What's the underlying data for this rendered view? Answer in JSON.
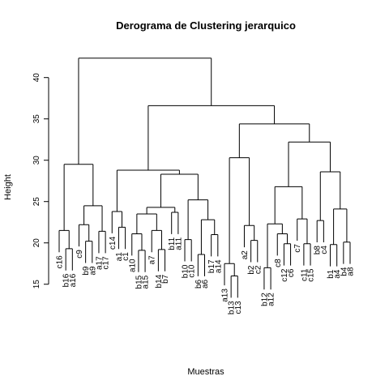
{
  "chart_data": {
    "type": "dendrogram",
    "title": "Derograma de Clustering jerarquico",
    "xlabel": "Muestras",
    "ylabel": "Height",
    "ylim": [
      13.6,
      43.5
    ],
    "yticks": [
      15,
      20,
      25,
      30,
      35,
      40
    ],
    "color": "#000000",
    "tree": {
      "height": 42.35,
      "children": [
        {
          "height": 29.5,
          "children": [
            {
              "height": 21.5,
              "children": [
                {
                  "label": "c16"
                },
                {
                  "height": 19.3,
                  "children": [
                    {
                      "label": "b16"
                    },
                    {
                      "label": "a16"
                    }
                  ]
                }
              ]
            },
            {
              "height": 24.5,
              "children": [
                {
                  "height": 22.2,
                  "children": [
                    {
                      "label": "c9"
                    },
                    {
                      "height": 20.2,
                      "children": [
                        {
                          "label": "b9"
                        },
                        {
                          "label": "a9"
                        }
                      ]
                    }
                  ]
                },
                {
                  "height": 21.4,
                  "children": [
                    {
                      "label": "a17"
                    },
                    {
                      "label": "c17"
                    }
                  ]
                }
              ]
            }
          ]
        },
        {
          "height": 36.6,
          "children": [
            {
              "height": 28.8,
              "children": [
                {
                  "height": 23.8,
                  "children": [
                    {
                      "label": "c14"
                    },
                    {
                      "height": 21.9,
                      "children": [
                        {
                          "label": "a1"
                        },
                        {
                          "label": "c1"
                        }
                      ]
                    }
                  ]
                },
                {
                  "height": 28.3,
                  "children": [
                    {
                      "height": 24.3,
                      "children": [
                        {
                          "height": 23.5,
                          "children": [
                            {
                              "height": 21.1,
                              "children": [
                                {
                                  "label": "a10"
                                },
                                {
                                  "height": 19.1,
                                  "children": [
                                    {
                                      "label": "b15"
                                    },
                                    {
                                      "label": "a15"
                                    }
                                  ]
                                }
                              ]
                            },
                            {
                              "height": 21.5,
                              "children": [
                                {
                                  "label": "a7"
                                },
                                {
                                  "height": 19.2,
                                  "children": [
                                    {
                                      "label": "b14"
                                    },
                                    {
                                      "label": "b7"
                                    }
                                  ]
                                }
                              ]
                            }
                          ]
                        },
                        {
                          "height": 23.7,
                          "children": [
                            {
                              "label": "b11"
                            },
                            {
                              "label": "a11"
                            }
                          ]
                        }
                      ]
                    },
                    {
                      "height": 25.2,
                      "children": [
                        {
                          "height": 20.4,
                          "children": [
                            {
                              "label": "b10"
                            },
                            {
                              "label": "c10"
                            }
                          ]
                        },
                        {
                          "height": 22.8,
                          "children": [
                            {
                              "height": 18.6,
                              "children": [
                                {
                                  "label": "b6"
                                },
                                {
                                  "label": "a6"
                                }
                              ]
                            },
                            {
                              "height": 21.0,
                              "children": [
                                {
                                  "label": "b17"
                                },
                                {
                                  "label": "a14"
                                }
                              ]
                            }
                          ]
                        }
                      ]
                    }
                  ]
                }
              ]
            },
            {
              "height": 34.4,
              "children": [
                {
                  "height": 30.3,
                  "children": [
                    {
                      "height": 17.5,
                      "children": [
                        {
                          "label": "a13"
                        },
                        {
                          "height": 16.0,
                          "children": [
                            {
                              "label": "b13"
                            },
                            {
                              "label": "c13"
                            }
                          ]
                        }
                      ]
                    },
                    {
                      "height": 22.1,
                      "children": [
                        {
                          "label": "a2"
                        },
                        {
                          "height": 20.3,
                          "children": [
                            {
                              "label": "b2"
                            },
                            {
                              "label": "c2"
                            }
                          ]
                        }
                      ]
                    }
                  ]
                },
                {
                  "height": 32.2,
                  "children": [
                    {
                      "height": 26.8,
                      "children": [
                        {
                          "height": 22.3,
                          "children": [
                            {
                              "height": 17.0,
                              "children": [
                                {
                                  "label": "b12"
                                },
                                {
                                  "label": "a12"
                                }
                              ]
                            },
                            {
                              "height": 21.1,
                              "children": [
                                {
                                  "label": "c8"
                                },
                                {
                                  "height": 19.9,
                                  "children": [
                                    {
                                      "label": "c12"
                                    },
                                    {
                                      "label": "c6"
                                    }
                                  ]
                                }
                              ]
                            }
                          ]
                        },
                        {
                          "height": 22.9,
                          "children": [
                            {
                              "label": "c7"
                            },
                            {
                              "height": 19.9,
                              "children": [
                                {
                                  "label": "c11"
                                },
                                {
                                  "label": "c15"
                                }
                              ]
                            }
                          ]
                        }
                      ]
                    },
                    {
                      "height": 28.6,
                      "children": [
                        {
                          "height": 22.7,
                          "children": [
                            {
                              "label": "b8"
                            },
                            {
                              "label": "c4"
                            }
                          ]
                        },
                        {
                          "height": 24.1,
                          "children": [
                            {
                              "height": 19.8,
                              "children": [
                                {
                                  "label": "b1"
                                },
                                {
                                  "label": "a4"
                                }
                              ]
                            },
                            {
                              "height": 20.1,
                              "children": [
                                {
                                  "label": "b4"
                                },
                                {
                                  "label": "a8"
                                }
                              ]
                            }
                          ]
                        }
                      ]
                    }
                  ]
                }
              ]
            }
          ]
        }
      ]
    }
  }
}
